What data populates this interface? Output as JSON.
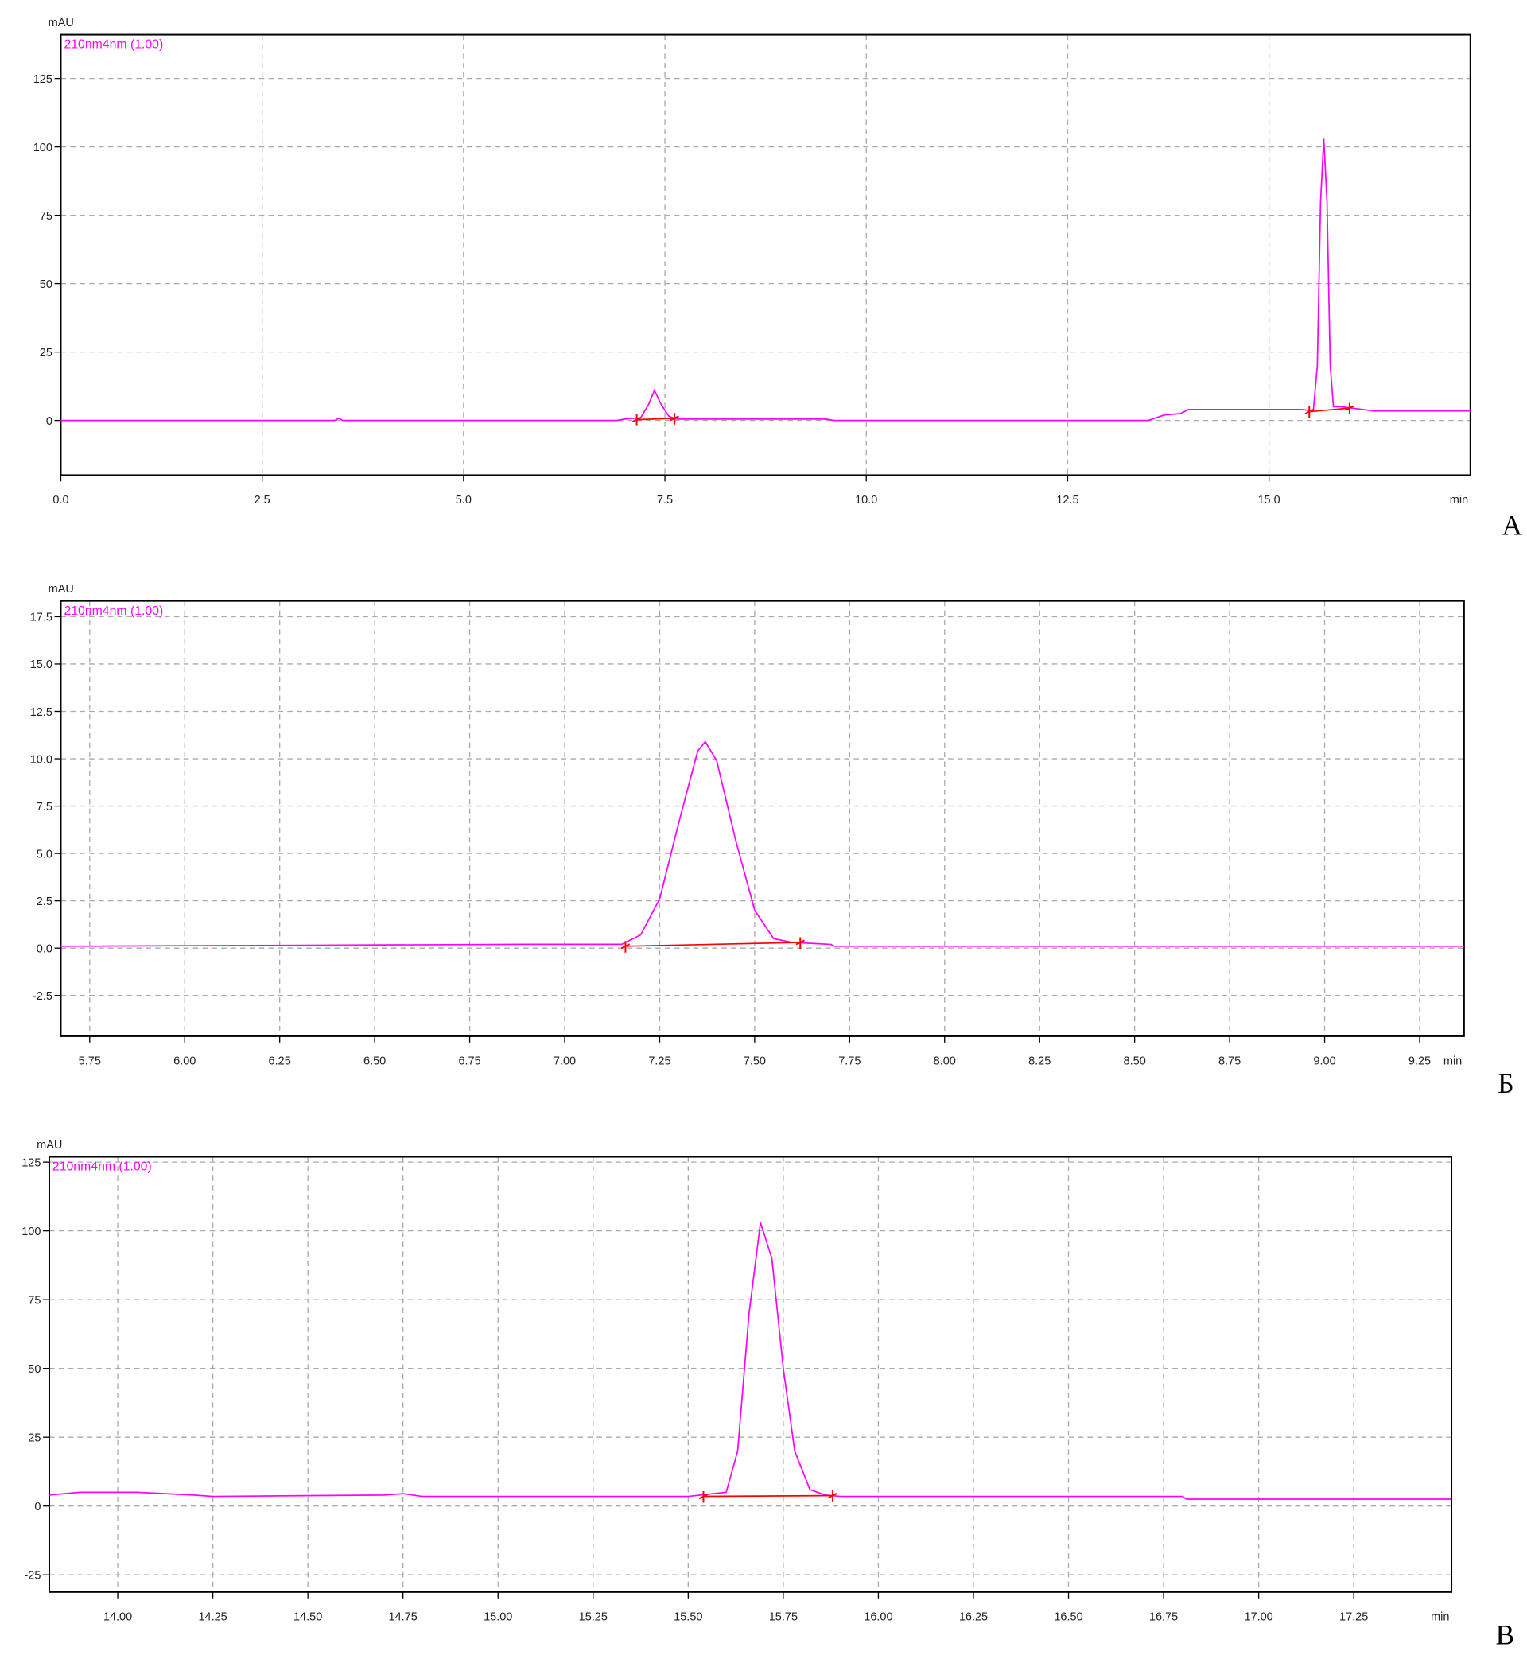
{
  "chart_data": [
    {
      "type": "line",
      "panel_label": "А",
      "y_label": "mAU",
      "x_label": "min",
      "grid": true,
      "xlim": [
        0,
        17.5
      ],
      "ylim": [
        -20,
        141
      ],
      "xticks": [
        {
          "value": 0,
          "label": "0.0"
        },
        2.5,
        {
          "value": 5,
          "label": "5.0"
        },
        7.5,
        {
          "value": 10,
          "label": "10.0"
        },
        12.5,
        {
          "value": 15,
          "label": "15.0"
        }
      ],
      "yticks": [
        0,
        25,
        50,
        75,
        100,
        125
      ],
      "series": [
        {
          "name": "210nm4nm (1.00)",
          "color": "#ff00ff",
          "x": [
            0,
            3.4,
            3.45,
            3.5,
            6.9,
            7.0,
            7.2,
            7.3,
            7.37,
            7.45,
            7.55,
            7.65,
            9.5,
            9.6,
            13.5,
            13.6,
            13.7,
            13.9,
            14.0,
            15.4,
            15.55,
            15.6,
            15.64,
            15.68,
            15.72,
            15.76,
            15.8,
            15.9,
            16.3,
            17.5
          ],
          "values": [
            0,
            0,
            0.8,
            0,
            0,
            0.5,
            1,
            6,
            11,
            6,
            1.5,
            0.5,
            0.5,
            0,
            0,
            1,
            2,
            2.5,
            4,
            4,
            3.5,
            20,
            80,
            103,
            80,
            20,
            5,
            5,
            3.5,
            3.5
          ]
        }
      ],
      "baselines": [
        {
          "color": "#ff0000",
          "x": [
            7.15,
            7.62
          ],
          "y": [
            0.3,
            0.8
          ]
        },
        {
          "color": "#ff0000",
          "x": [
            15.5,
            16.0
          ],
          "y": [
            3.2,
            4.5
          ]
        }
      ]
    },
    {
      "type": "line",
      "panel_label": "Б",
      "y_label": "mAU",
      "x_label": "min",
      "grid": true,
      "xlim": [
        5.674,
        9.367
      ],
      "ylim": [
        -4.65,
        18.33
      ],
      "xticks": [
        5.75,
        {
          "value": 6,
          "label": "6.00"
        },
        6.25,
        {
          "value": 6.5,
          "label": "6.50"
        },
        6.75,
        {
          "value": 7,
          "label": "7.00"
        },
        7.25,
        {
          "value": 7.5,
          "label": "7.50"
        },
        7.75,
        {
          "value": 8,
          "label": "8.00"
        },
        8.25,
        {
          "value": 8.5,
          "label": "8.50"
        },
        8.75,
        {
          "value": 9,
          "label": "9.00"
        },
        9.25
      ],
      "yticks": [
        17.5,
        {
          "value": 15,
          "label": "15.0"
        },
        12.5,
        {
          "value": 10,
          "label": "10.0"
        },
        7.5,
        {
          "value": 5,
          "label": "5.0"
        },
        2.5,
        {
          "value": 0,
          "label": "0.0"
        },
        -2.5
      ],
      "series": [
        {
          "name": "210nm4nm (1.00)",
          "color": "#ff00ff",
          "x": [
            5.674,
            6.9,
            7.15,
            7.2,
            7.25,
            7.3,
            7.35,
            7.37,
            7.4,
            7.45,
            7.5,
            7.55,
            7.6,
            7.7,
            7.71,
            9.367
          ],
          "values": [
            0.1,
            0.2,
            0.2,
            0.7,
            2.6,
            6.6,
            10.4,
            10.9,
            9.9,
            5.7,
            2.0,
            0.5,
            0.3,
            0.2,
            0.1,
            0.1
          ]
        }
      ],
      "baselines": [
        {
          "color": "#ff0000",
          "x": [
            7.16,
            7.62
          ],
          "y": [
            0.1,
            0.3
          ]
        }
      ]
    },
    {
      "type": "line",
      "panel_label": "В",
      "y_label": "mAU",
      "x_label": "min",
      "grid": true,
      "xlim": [
        13.82,
        17.507
      ],
      "ylim": [
        -31.25,
        126.9
      ],
      "xticks": [
        {
          "value": 14,
          "label": "14.00"
        },
        14.25,
        {
          "value": 14.5,
          "label": "14.50"
        },
        14.75,
        {
          "value": 15,
          "label": "15.00"
        },
        15.25,
        {
          "value": 15.5,
          "label": "15.50"
        },
        15.75,
        {
          "value": 16,
          "label": "16.00"
        },
        16.25,
        {
          "value": 16.5,
          "label": "16.50"
        },
        16.75,
        {
          "value": 17,
          "label": "17.00"
        },
        17.25
      ],
      "yticks": [
        -25,
        0,
        25,
        50,
        75,
        100,
        125
      ],
      "series": [
        {
          "name": "210nm4nm (1.00)",
          "color": "#ff00ff",
          "x": [
            13.82,
            13.9,
            14.05,
            14.2,
            14.25,
            14.7,
            14.75,
            14.8,
            15.5,
            15.6,
            15.63,
            15.66,
            15.69,
            15.72,
            15.75,
            15.78,
            15.82,
            15.86,
            15.9,
            16.8,
            16.81,
            17.507
          ],
          "values": [
            4,
            5,
            5,
            4,
            3.5,
            4,
            4.5,
            3.5,
            3.5,
            5,
            20,
            70,
            103,
            90,
            50,
            20,
            6,
            4,
            3.5,
            3.5,
            2.5,
            2.5
          ]
        }
      ],
      "baselines": [
        {
          "color": "#ff0000",
          "x": [
            15.54,
            15.88
          ],
          "y": [
            3.5,
            3.8
          ]
        }
      ]
    }
  ]
}
